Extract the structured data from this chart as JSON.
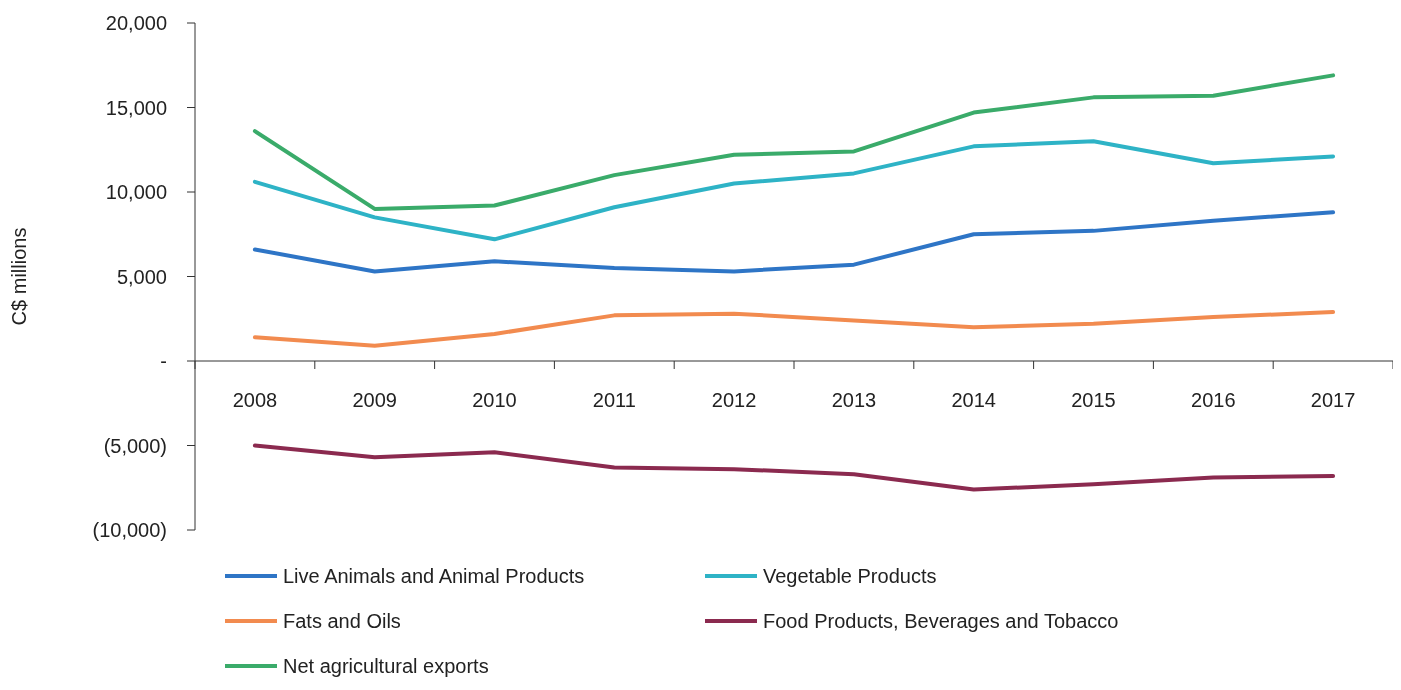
{
  "chart_data": {
    "type": "line",
    "ylabel": "C$ millions",
    "categories": [
      "2008",
      "2009",
      "2010",
      "2011",
      "2012",
      "2013",
      "2014",
      "2015",
      "2016",
      "2017"
    ],
    "ylim": [
      -10000,
      20000
    ],
    "yticks": [
      {
        "value": -10000,
        "label": "(10,000)"
      },
      {
        "value": -5000,
        "label": "(5,000)"
      },
      {
        "value": 0,
        "label": "-"
      },
      {
        "value": 5000,
        "label": "5,000"
      },
      {
        "value": 10000,
        "label": "10,000"
      },
      {
        "value": 15000,
        "label": "15,000"
      },
      {
        "value": 20000,
        "label": "20,000"
      }
    ],
    "grid": false,
    "legend": "bottom",
    "marker": "none",
    "line_style": "solid",
    "series": [
      {
        "name": "Live Animals and Animal Products",
        "color": "#2e75c6",
        "values": [
          6600,
          5300,
          5900,
          5500,
          5300,
          5700,
          7500,
          7700,
          8300,
          8800
        ]
      },
      {
        "name": "Vegetable Products",
        "color": "#2eb3c6",
        "values": [
          10600,
          8500,
          7200,
          9100,
          10500,
          11100,
          12700,
          13000,
          11700,
          12100
        ]
      },
      {
        "name": "Fats and Oils",
        "color": "#f28b4f",
        "values": [
          1400,
          900,
          1600,
          2700,
          2800,
          2400,
          2000,
          2200,
          2600,
          2900
        ]
      },
      {
        "name": "Food Products, Beverages and Tobacco",
        "color": "#8b2a4f",
        "values": [
          -5000,
          -5700,
          -5400,
          -6300,
          -6400,
          -6700,
          -7600,
          -7300,
          -6900,
          -6800
        ]
      },
      {
        "name": "Net agricultural exports",
        "color": "#3aab6a",
        "values": [
          13600,
          9000,
          9200,
          11000,
          12200,
          12400,
          14700,
          15600,
          15700,
          16900
        ]
      }
    ]
  }
}
